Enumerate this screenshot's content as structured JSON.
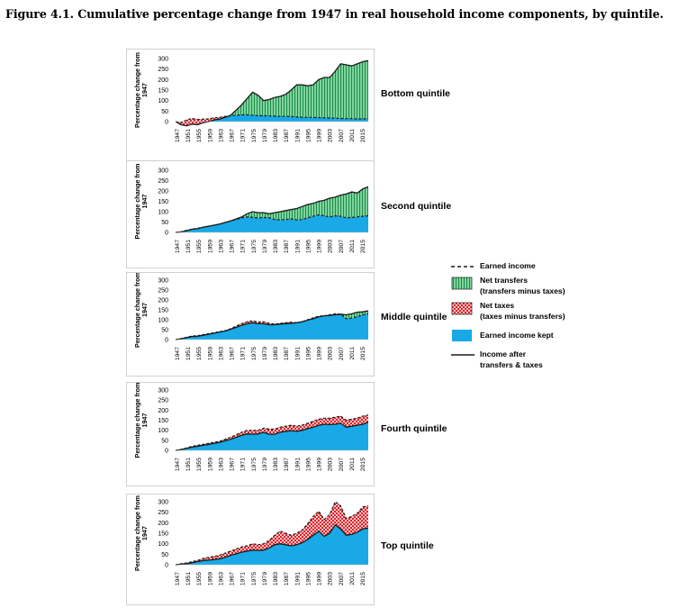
{
  "figure": {
    "title": "Figure 4.1. Cumulative percentage change from 1947 in real household income components, by quintile."
  },
  "colors": {
    "earned_kept": "#18a9e6",
    "net_transfers": "#7ed49b",
    "net_transfers_stripe": "#1d8a4c",
    "net_taxes_fill": "#f6c7c7",
    "net_taxes_dot": "#e0202a",
    "line": "#1a1a1a"
  },
  "legend": {
    "items": [
      {
        "key": "earned-income",
        "lines": [
          "Earned income"
        ]
      },
      {
        "key": "net-transfers",
        "lines": [
          "Net transfers",
          "(transfers minus taxes)"
        ]
      },
      {
        "key": "net-taxes",
        "lines": [
          "Net taxes",
          "(taxes minus transfers)"
        ]
      },
      {
        "key": "earned-kept",
        "lines": [
          "Earned income kept"
        ]
      },
      {
        "key": "income-after",
        "lines": [
          "Income after",
          "transfers & taxes"
        ]
      }
    ]
  },
  "chart_data": [
    {
      "type": "area",
      "label": "Bottom quintile",
      "ylabel": "Percentage change from 1947",
      "yticks": [
        0,
        50,
        100,
        150,
        200,
        250,
        300
      ],
      "ylim": [
        -25,
        300
      ],
      "xticks": [
        "1947",
        "1951",
        "1955",
        "1959",
        "1963",
        "1967",
        "1971",
        "1975",
        "1979",
        "1983",
        "1987",
        "1991",
        "1995",
        "1999",
        "2003",
        "2007",
        "2011",
        "2015"
      ],
      "x": [
        1947,
        1949,
        1951,
        1953,
        1955,
        1957,
        1959,
        1961,
        1963,
        1965,
        1967,
        1969,
        1971,
        1973,
        1975,
        1977,
        1979,
        1981,
        1983,
        1985,
        1987,
        1989,
        1991,
        1993,
        1995,
        1997,
        1999,
        2001,
        2003,
        2005,
        2007,
        2009,
        2011,
        2013,
        2015,
        2017
      ],
      "series": [
        {
          "name": "Earned income",
          "values": [
            0,
            -5,
            8,
            15,
            10,
            12,
            13,
            18,
            20,
            25,
            28,
            30,
            32,
            32,
            30,
            28,
            28,
            27,
            26,
            25,
            25,
            24,
            22,
            20,
            20,
            20,
            19,
            18,
            17,
            16,
            15,
            14,
            14,
            13,
            13,
            14
          ]
        },
        {
          "name": "Income after transfers & taxes",
          "values": [
            0,
            -15,
            -20,
            -12,
            -15,
            -5,
            0,
            8,
            12,
            20,
            30,
            55,
            80,
            110,
            140,
            125,
            100,
            105,
            115,
            120,
            130,
            150,
            175,
            175,
            170,
            175,
            200,
            210,
            210,
            240,
            275,
            270,
            265,
            275,
            285,
            290
          ]
        }
      ]
    },
    {
      "type": "area",
      "label": "Second quintile",
      "ylabel": "Percentage change from 1947",
      "yticks": [
        0,
        50,
        100,
        150,
        200,
        250,
        300
      ],
      "ylim": [
        -25,
        300
      ],
      "xticks": [
        "1947",
        "1951",
        "1955",
        "1959",
        "1963",
        "1967",
        "1971",
        "1975",
        "1979",
        "1983",
        "1987",
        "1991",
        "1995",
        "1999",
        "2003",
        "2007",
        "2011",
        "2015"
      ],
      "x": [
        1947,
        1949,
        1951,
        1953,
        1955,
        1957,
        1959,
        1961,
        1963,
        1965,
        1967,
        1969,
        1971,
        1973,
        1975,
        1977,
        1979,
        1981,
        1983,
        1985,
        1987,
        1989,
        1991,
        1993,
        1995,
        1997,
        1999,
        2001,
        2003,
        2005,
        2007,
        2009,
        2011,
        2013,
        2015,
        2017
      ],
      "series": [
        {
          "name": "Earned income",
          "values": [
            0,
            3,
            10,
            15,
            20,
            25,
            30,
            35,
            40,
            48,
            55,
            62,
            70,
            75,
            72,
            70,
            72,
            70,
            62,
            60,
            62,
            65,
            60,
            62,
            70,
            78,
            85,
            80,
            75,
            80,
            78,
            70,
            72,
            75,
            78,
            80
          ]
        },
        {
          "name": "Income after transfers & taxes",
          "values": [
            0,
            2,
            8,
            15,
            18,
            25,
            30,
            35,
            40,
            48,
            55,
            65,
            75,
            90,
            100,
            95,
            95,
            90,
            95,
            100,
            105,
            110,
            115,
            125,
            135,
            140,
            150,
            155,
            165,
            170,
            180,
            185,
            195,
            190,
            210,
            220
          ]
        }
      ]
    },
    {
      "type": "area",
      "label": "Middle quintile",
      "ylabel": "Percentage change from 1947",
      "yticks": [
        0,
        50,
        100,
        150,
        200,
        250,
        300
      ],
      "ylim": [
        -25,
        300
      ],
      "xticks": [
        "1947",
        "1951",
        "1955",
        "1959",
        "1963",
        "1967",
        "1971",
        "1975",
        "1979",
        "1983",
        "1987",
        "1991",
        "1995",
        "1999",
        "2003",
        "2007",
        "2011",
        "2015"
      ],
      "x": [
        1947,
        1949,
        1951,
        1953,
        1955,
        1957,
        1959,
        1961,
        1963,
        1965,
        1967,
        1969,
        1971,
        1973,
        1975,
        1977,
        1979,
        1981,
        1983,
        1985,
        1987,
        1989,
        1991,
        1993,
        1995,
        1997,
        1999,
        2001,
        2003,
        2005,
        2007,
        2009,
        2011,
        2013,
        2015,
        2017
      ],
      "series": [
        {
          "name": "Earned income",
          "values": [
            0,
            5,
            12,
            18,
            20,
            25,
            30,
            35,
            40,
            45,
            55,
            68,
            80,
            90,
            95,
            88,
            90,
            82,
            78,
            82,
            85,
            88,
            85,
            90,
            100,
            110,
            118,
            120,
            125,
            130,
            128,
            105,
            108,
            115,
            125,
            130
          ]
        },
        {
          "name": "Income after transfers & taxes",
          "values": [
            0,
            4,
            10,
            15,
            17,
            22,
            27,
            32,
            38,
            43,
            52,
            62,
            72,
            80,
            85,
            80,
            80,
            75,
            75,
            78,
            80,
            82,
            85,
            90,
            98,
            105,
            115,
            120,
            122,
            125,
            128,
            125,
            130,
            138,
            140,
            145
          ]
        }
      ]
    },
    {
      "type": "area",
      "label": "Fourth quintile",
      "ylabel": "Percentage change from 1947",
      "yticks": [
        0,
        50,
        100,
        150,
        200,
        250,
        300
      ],
      "ylim": [
        -25,
        300
      ],
      "xticks": [
        "1947",
        "1951",
        "1955",
        "1959",
        "1963",
        "1967",
        "1971",
        "1975",
        "1979",
        "1983",
        "1987",
        "1991",
        "1995",
        "1999",
        "2003",
        "2007",
        "2011",
        "2015"
      ],
      "x": [
        1947,
        1949,
        1951,
        1953,
        1955,
        1957,
        1959,
        1961,
        1963,
        1965,
        1967,
        1969,
        1971,
        1973,
        1975,
        1977,
        1979,
        1981,
        1983,
        1985,
        1987,
        1989,
        1991,
        1993,
        1995,
        1997,
        1999,
        2001,
        2003,
        2005,
        2007,
        2009,
        2011,
        2013,
        2015,
        2017
      ],
      "series": [
        {
          "name": "Earned income",
          "values": [
            0,
            5,
            12,
            20,
            25,
            30,
            35,
            40,
            45,
            55,
            65,
            78,
            90,
            100,
            100,
            100,
            110,
            105,
            105,
            115,
            120,
            125,
            120,
            125,
            135,
            145,
            155,
            160,
            160,
            165,
            170,
            150,
            155,
            160,
            170,
            175
          ]
        },
        {
          "name": "Income after transfers & taxes",
          "values": [
            0,
            4,
            10,
            16,
            20,
            25,
            30,
            35,
            40,
            48,
            55,
            65,
            75,
            82,
            80,
            82,
            90,
            80,
            80,
            90,
            95,
            98,
            95,
            100,
            108,
            115,
            125,
            130,
            128,
            130,
            135,
            115,
            120,
            125,
            130,
            140
          ]
        }
      ]
    },
    {
      "type": "area",
      "label": "Top quintile",
      "ylabel": "Percentage change from 1947",
      "yticks": [
        0,
        50,
        100,
        150,
        200,
        250,
        300
      ],
      "ylim": [
        -25,
        300
      ],
      "xticks": [
        "1947",
        "1951",
        "1955",
        "1959",
        "1963",
        "1967",
        "1971",
        "1975",
        "1979",
        "1983",
        "1987",
        "1991",
        "1995",
        "1999",
        "2003",
        "2007",
        "2011",
        "2015"
      ],
      "x": [
        1947,
        1949,
        1951,
        1953,
        1955,
        1957,
        1959,
        1961,
        1963,
        1965,
        1967,
        1969,
        1971,
        1973,
        1975,
        1977,
        1979,
        1981,
        1983,
        1985,
        1987,
        1989,
        1991,
        1993,
        1995,
        1997,
        1999,
        2001,
        2003,
        2005,
        2007,
        2009,
        2011,
        2013,
        2015,
        2017
      ],
      "series": [
        {
          "name": "Earned income",
          "values": [
            0,
            5,
            8,
            15,
            20,
            30,
            35,
            40,
            45,
            55,
            65,
            75,
            85,
            90,
            100,
            95,
            100,
            115,
            140,
            160,
            150,
            140,
            150,
            165,
            195,
            230,
            255,
            215,
            240,
            300,
            280,
            220,
            230,
            245,
            275,
            280
          ]
        },
        {
          "name": "Income after transfers & taxes",
          "values": [
            0,
            3,
            5,
            10,
            15,
            20,
            22,
            25,
            28,
            35,
            45,
            52,
            60,
            65,
            70,
            68,
            70,
            80,
            95,
            100,
            95,
            90,
            95,
            105,
            120,
            140,
            160,
            135,
            150,
            190,
            170,
            140,
            145,
            155,
            170,
            175
          ]
        }
      ]
    }
  ]
}
